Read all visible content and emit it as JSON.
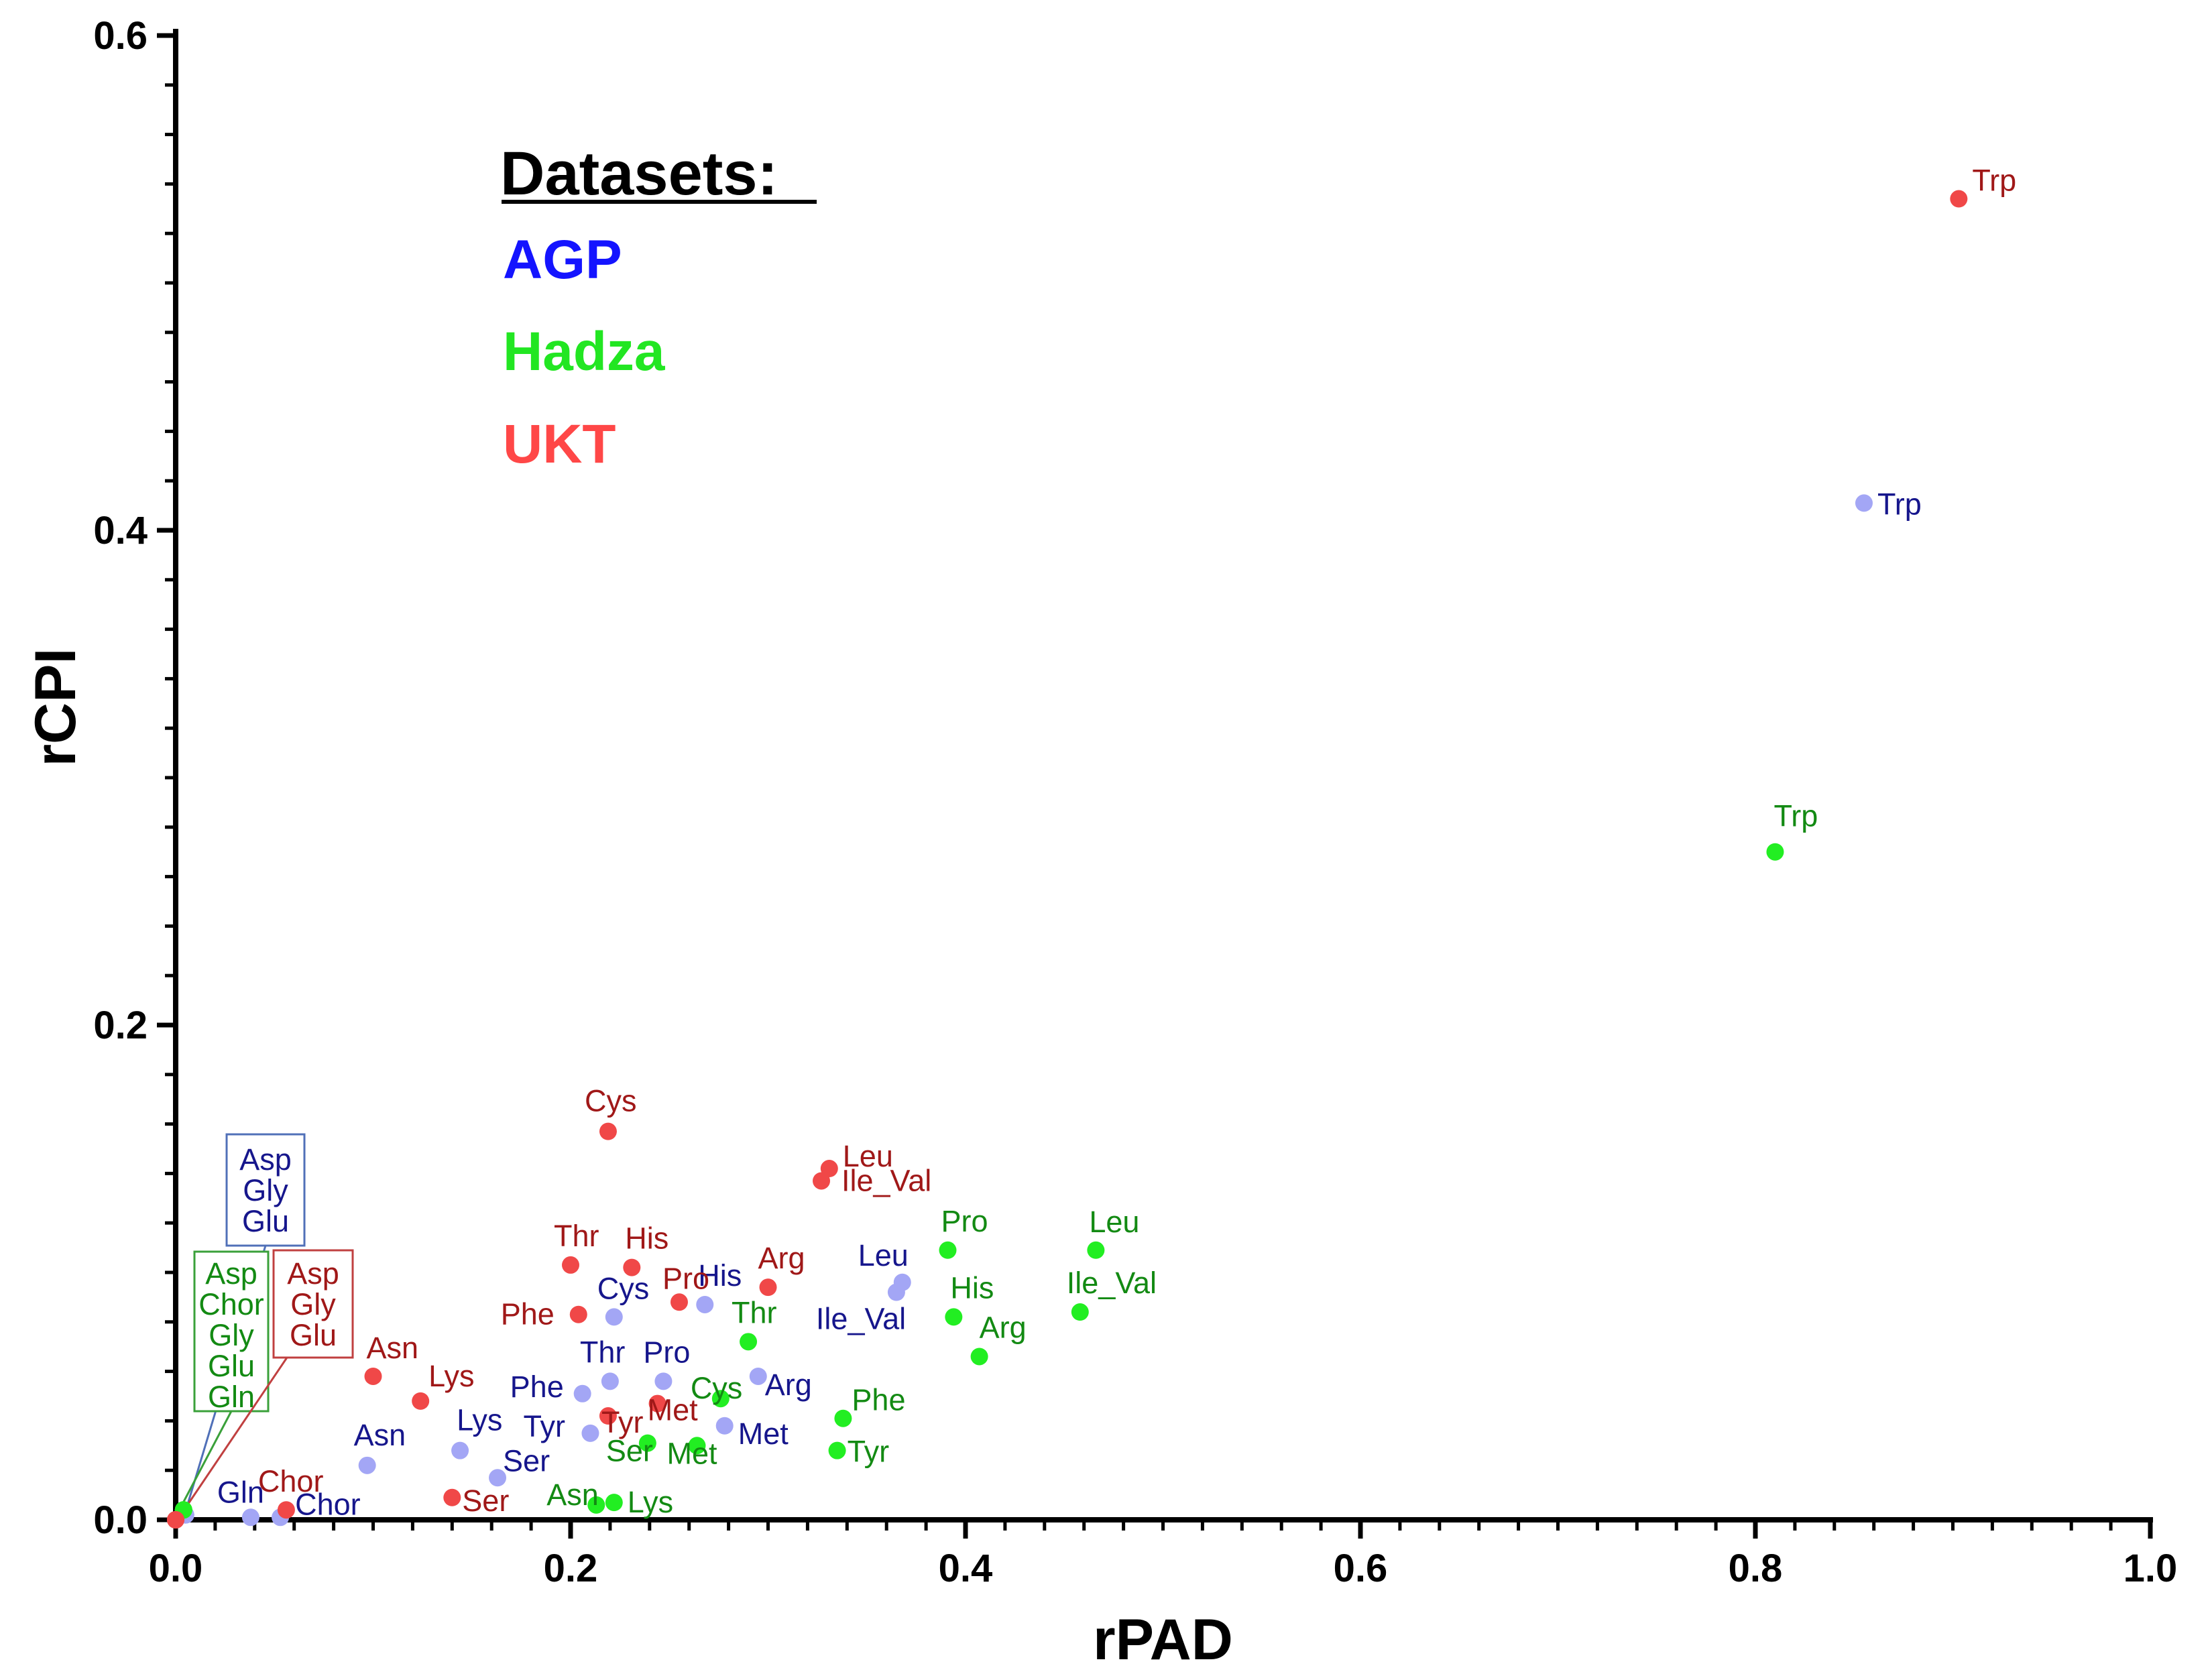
{
  "chart_data": {
    "type": "scatter",
    "title": "",
    "xlabel": "rPAD",
    "ylabel": "rCPI",
    "xlim": [
      0,
      1.0
    ],
    "ylim": [
      0,
      0.6
    ],
    "x_ticks": [
      "0.0",
      "0.2",
      "0.4",
      "0.6",
      "0.8",
      "1.0"
    ],
    "y_ticks": [
      "0.0",
      "0.2",
      "0.4",
      "0.6"
    ],
    "legend": {
      "title": "Datasets:",
      "position": "top-left",
      "entries": [
        {
          "name": "AGP",
          "color": "#1414ff"
        },
        {
          "name": "Hadza",
          "color": "#22e622"
        },
        {
          "name": "UKT",
          "color": "#ff4747"
        }
      ]
    },
    "series": [
      {
        "name": "AGP",
        "point_color": "#a3a6f5",
        "label_color": "#16168c",
        "points": [
          {
            "label": "Trp",
            "x": 0.855,
            "y": 0.411
          },
          {
            "label": "Leu",
            "x": 0.368,
            "y": 0.096
          },
          {
            "label": "Ile_Val",
            "x": 0.365,
            "y": 0.092
          },
          {
            "label": "His",
            "x": 0.268,
            "y": 0.087
          },
          {
            "label": "Cys",
            "x": 0.222,
            "y": 0.082
          },
          {
            "label": "Thr",
            "x": 0.22,
            "y": 0.056
          },
          {
            "label": "Pro",
            "x": 0.247,
            "y": 0.056
          },
          {
            "label": "Phe",
            "x": 0.206,
            "y": 0.051
          },
          {
            "label": "Arg",
            "x": 0.295,
            "y": 0.058
          },
          {
            "label": "Met",
            "x": 0.278,
            "y": 0.038
          },
          {
            "label": "Tyr",
            "x": 0.21,
            "y": 0.035
          },
          {
            "label": "Lys",
            "x": 0.144,
            "y": 0.028
          },
          {
            "label": "Ser",
            "x": 0.163,
            "y": 0.017
          },
          {
            "label": "Asn",
            "x": 0.097,
            "y": 0.022
          },
          {
            "label": "Gln",
            "x": 0.038,
            "y": 0.001
          },
          {
            "label": "Chor",
            "x": 0.053,
            "y": 0.001
          },
          {
            "label": "Asp",
            "x": 0.005,
            "y": 0.002
          },
          {
            "label": "Gly",
            "x": 0.005,
            "y": 0.002
          },
          {
            "label": "Glu",
            "x": 0.005,
            "y": 0.002
          }
        ]
      },
      {
        "name": "Hadza",
        "point_color": "#22ee22",
        "label_color": "#138a13",
        "points": [
          {
            "label": "Trp",
            "x": 0.81,
            "y": 0.27
          },
          {
            "label": "Leu",
            "x": 0.466,
            "y": 0.109
          },
          {
            "label": "Pro",
            "x": 0.391,
            "y": 0.109
          },
          {
            "label": "Ile_Val",
            "x": 0.458,
            "y": 0.084
          },
          {
            "label": "His",
            "x": 0.394,
            "y": 0.082
          },
          {
            "label": "Arg",
            "x": 0.407,
            "y": 0.066
          },
          {
            "label": "Thr",
            "x": 0.29,
            "y": 0.072
          },
          {
            "label": "Phe",
            "x": 0.338,
            "y": 0.041
          },
          {
            "label": "Tyr",
            "x": 0.335,
            "y": 0.028
          },
          {
            "label": "Cys",
            "x": 0.276,
            "y": 0.049
          },
          {
            "label": "Met",
            "x": 0.264,
            "y": 0.03
          },
          {
            "label": "Ser",
            "x": 0.239,
            "y": 0.031
          },
          {
            "label": "Asn",
            "x": 0.213,
            "y": 0.006
          },
          {
            "label": "Lys",
            "x": 0.222,
            "y": 0.007
          },
          {
            "label": "Asp",
            "x": 0.004,
            "y": 0.004
          },
          {
            "label": "Chor",
            "x": 0.004,
            "y": 0.004
          },
          {
            "label": "Gly",
            "x": 0.004,
            "y": 0.004
          },
          {
            "label": "Glu",
            "x": 0.004,
            "y": 0.004
          },
          {
            "label": "Gln",
            "x": 0.004,
            "y": 0.004
          }
        ]
      },
      {
        "name": "UKT",
        "point_color": "#f04848",
        "label_color": "#a01818",
        "points": [
          {
            "label": "Trp",
            "x": 0.903,
            "y": 0.534
          },
          {
            "label": "Cys",
            "x": 0.219,
            "y": 0.157
          },
          {
            "label": "Leu",
            "x": 0.331,
            "y": 0.142
          },
          {
            "label": "Ile_Val",
            "x": 0.327,
            "y": 0.137
          },
          {
            "label": "Thr",
            "x": 0.2,
            "y": 0.103
          },
          {
            "label": "His",
            "x": 0.231,
            "y": 0.102
          },
          {
            "label": "Arg",
            "x": 0.3,
            "y": 0.094
          },
          {
            "label": "Pro",
            "x": 0.255,
            "y": 0.088
          },
          {
            "label": "Phe",
            "x": 0.204,
            "y": 0.083
          },
          {
            "label": "Asn",
            "x": 0.1,
            "y": 0.058
          },
          {
            "label": "Lys",
            "x": 0.124,
            "y": 0.048
          },
          {
            "label": "Tyr",
            "x": 0.219,
            "y": 0.042
          },
          {
            "label": "Met",
            "x": 0.244,
            "y": 0.047
          },
          {
            "label": "Ser",
            "x": 0.14,
            "y": 0.009
          },
          {
            "label": "Chor",
            "x": 0.056,
            "y": 0.004
          },
          {
            "label": "Asp",
            "x": 0.0,
            "y": 0.0
          },
          {
            "label": "Gly",
            "x": 0.0,
            "y": 0.0
          },
          {
            "label": "Glu",
            "x": 0.0,
            "y": 0.0
          }
        ]
      }
    ],
    "annotation_boxes": [
      {
        "series": "AGP",
        "labels": [
          "Asp",
          "Gly",
          "Glu"
        ],
        "border_color": "#5070b8"
      },
      {
        "series": "Hadza",
        "labels": [
          "Asp",
          "Chor",
          "Gly",
          "Glu",
          "Gln"
        ],
        "border_color": "#3aa03a"
      },
      {
        "series": "UKT",
        "labels": [
          "Asp",
          "Gly",
          "Glu"
        ],
        "border_color": "#c04040"
      }
    ]
  }
}
